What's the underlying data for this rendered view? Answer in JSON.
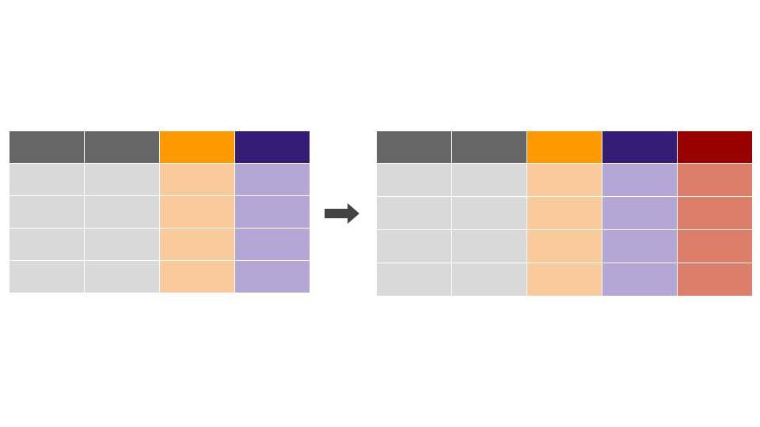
{
  "colors": {
    "gray_header": "#666666",
    "gray_body": "#d9d9d9",
    "orange_header": "#ff9900",
    "orange_body": "#f9cb9c",
    "purple_header": "#351c75",
    "purple_body": "#b4a7d6",
    "red_header": "#990000",
    "red_body": "#dd7e6b",
    "arrow": "#434343"
  },
  "left_table": {
    "rows": 4,
    "columns": [
      "gray",
      "gray",
      "orange",
      "purple"
    ]
  },
  "right_table": {
    "rows": 4,
    "columns": [
      "gray",
      "gray",
      "orange",
      "purple",
      "red"
    ]
  },
  "arrow": {
    "icon": "right-arrow-icon"
  }
}
